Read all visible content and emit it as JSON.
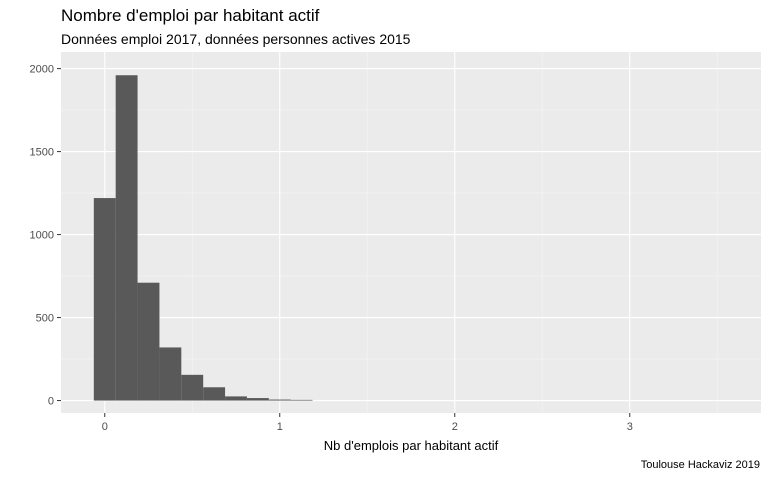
{
  "chart_data": {
    "type": "bar",
    "title": "Nombre d'emploi par habitant actif",
    "subtitle": "Données emploi 2017, données personnes actives 2015",
    "caption": "Toulouse Hackaviz 2019",
    "xlabel": "Nb d'emplois par habitant actif",
    "ylabel": "",
    "xlim": [
      -0.25,
      3.75
    ],
    "ylim": [
      -75,
      2100
    ],
    "x_ticks": [
      0,
      1,
      2,
      3
    ],
    "y_ticks": [
      0,
      500,
      1000,
      1500,
      2000
    ],
    "grid": true,
    "bin_width": 0.125,
    "bins": [
      {
        "x0": -0.0625,
        "x1": 0.0625,
        "count": 1220
      },
      {
        "x0": 0.0625,
        "x1": 0.1875,
        "count": 1960
      },
      {
        "x0": 0.1875,
        "x1": 0.3125,
        "count": 710
      },
      {
        "x0": 0.3125,
        "x1": 0.4375,
        "count": 320
      },
      {
        "x0": 0.4375,
        "x1": 0.5625,
        "count": 155
      },
      {
        "x0": 0.5625,
        "x1": 0.6875,
        "count": 80
      },
      {
        "x0": 0.6875,
        "x1": 0.8125,
        "count": 25
      },
      {
        "x0": 0.8125,
        "x1": 0.9375,
        "count": 15
      },
      {
        "x0": 0.9375,
        "x1": 1.0625,
        "count": 6
      },
      {
        "x0": 1.0625,
        "x1": 1.1875,
        "count": 4
      }
    ],
    "colors": {
      "panel": "#EBEBEB",
      "grid_major": "#FFFFFF",
      "grid_minor": "#F5F5F5",
      "bar": "#595959",
      "tick_text": "#4D4D4D",
      "tick": "#333333"
    }
  }
}
